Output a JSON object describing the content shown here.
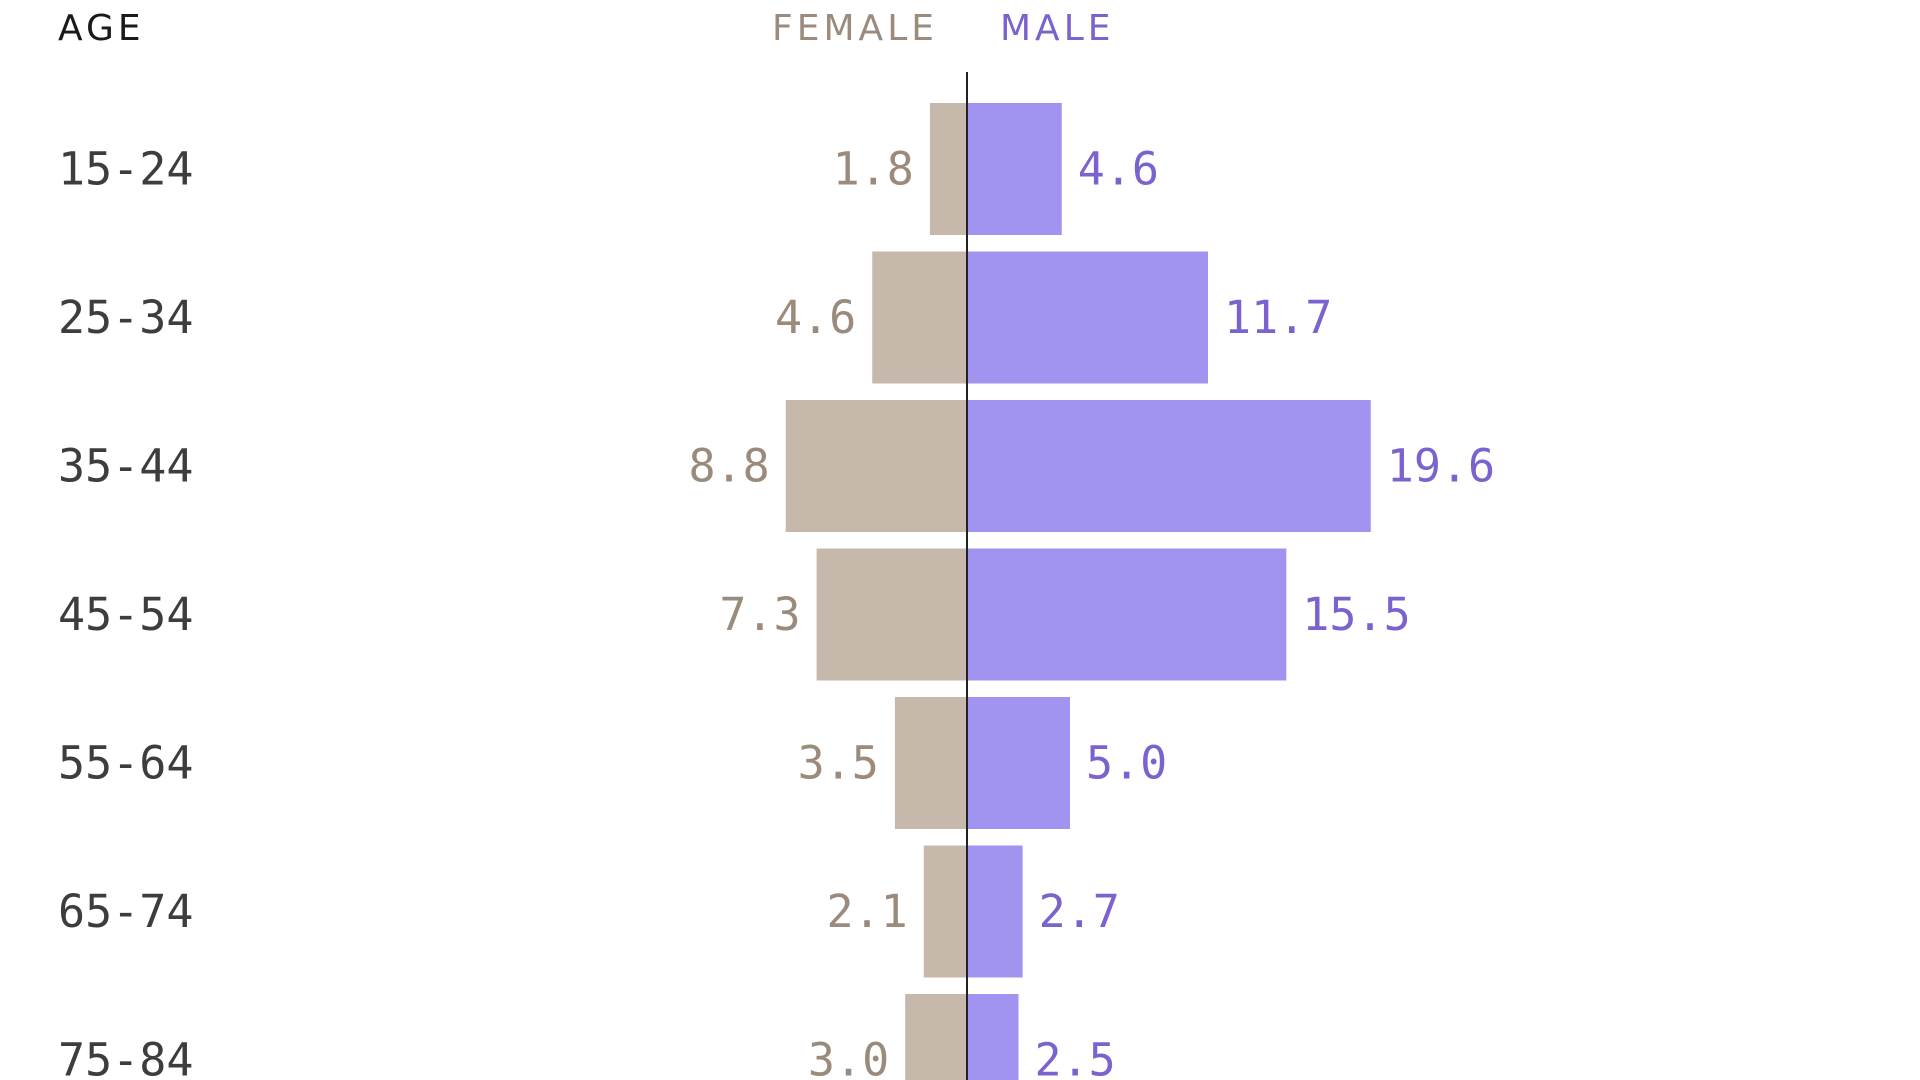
{
  "chart_data": {
    "type": "bar",
    "subtype": "population-pyramid",
    "orientation": "horizontal",
    "column_header": "AGE",
    "categories": [
      "15-24",
      "25-34",
      "35-44",
      "45-54",
      "55-64",
      "65-74",
      "75-84"
    ],
    "series": [
      {
        "name": "FEMALE",
        "side": "left",
        "color": "#c6b8aa",
        "label_color": "#9a8b7c",
        "values": [
          1.8,
          4.6,
          8.8,
          7.3,
          3.5,
          2.1,
          3.0
        ]
      },
      {
        "name": "MALE",
        "side": "right",
        "color": "#a193f0",
        "label_color": "#7b62cf",
        "values": [
          4.6,
          11.7,
          19.6,
          15.5,
          5.0,
          2.7,
          2.5
        ]
      }
    ],
    "value_labels": {
      "female": [
        "1.8",
        "4.6",
        "8.8",
        "7.3",
        "3.5",
        "2.1",
        "3.0"
      ],
      "male": [
        "4.6",
        "11.7",
        "19.6",
        "15.5",
        "5.0",
        "2.7",
        "2.5"
      ]
    },
    "grid": false,
    "legend": "top-center, as column headers"
  }
}
